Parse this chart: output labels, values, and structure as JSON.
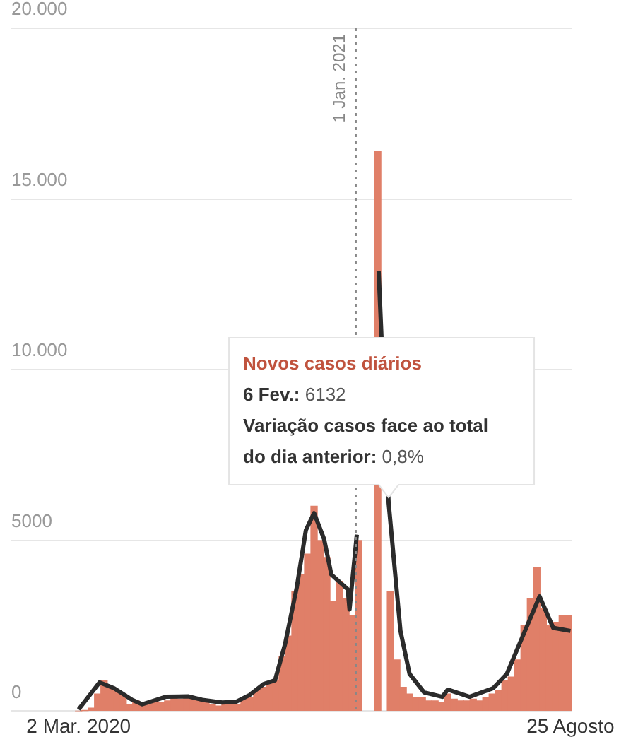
{
  "chart_data": {
    "type": "bar",
    "x": [
      "2020-03-02",
      "2020-03-09",
      "2020-03-16",
      "2020-03-23",
      "2020-03-30",
      "2020-04-06",
      "2020-04-13",
      "2020-04-20",
      "2020-04-27",
      "2020-05-04",
      "2020-05-11",
      "2020-05-18",
      "2020-05-25",
      "2020-06-01",
      "2020-06-08",
      "2020-06-15",
      "2020-06-22",
      "2020-06-29",
      "2020-07-06",
      "2020-07-13",
      "2020-07-20",
      "2020-07-27",
      "2020-08-03",
      "2020-08-10",
      "2020-08-17",
      "2020-08-24",
      "2020-08-31",
      "2020-09-07",
      "2020-09-14",
      "2020-09-21",
      "2020-09-28",
      "2020-10-05",
      "2020-10-12",
      "2020-10-19",
      "2020-10-26",
      "2020-11-02",
      "2020-11-09",
      "2020-11-16",
      "2020-11-23",
      "2020-11-30",
      "2020-12-07",
      "2020-12-14",
      "2020-12-21",
      "2020-12-28",
      "2021-01-04",
      "2021-01-11",
      "2021-01-18",
      "2021-01-25",
      "2021-02-01",
      "2021-02-08",
      "2021-02-15",
      "2021-02-22",
      "2021-03-01",
      "2021-03-08",
      "2021-03-15",
      "2021-03-22",
      "2021-03-29",
      "2021-04-05",
      "2021-04-12",
      "2021-04-19",
      "2021-04-26",
      "2021-05-03",
      "2021-05-10",
      "2021-05-17",
      "2021-05-24",
      "2021-05-31",
      "2021-06-07",
      "2021-06-14",
      "2021-06-21",
      "2021-06-28",
      "2021-07-05",
      "2021-07-12",
      "2021-07-19",
      "2021-07-26",
      "2021-08-02",
      "2021-08-09",
      "2021-08-16",
      "2021-08-23"
    ],
    "series": [
      {
        "color": "#e07f68",
        "values": [
          0,
          10,
          90,
          500,
          900,
          700,
          600,
          500,
          200,
          300,
          200,
          200,
          300,
          250,
          300,
          400,
          350,
          400,
          400,
          350,
          250,
          200,
          150,
          200,
          250,
          200,
          350,
          400,
          600,
          700,
          800,
          900,
          1600,
          2200,
          3500,
          4000,
          4600,
          6000,
          5000,
          4500,
          3200,
          3800,
          3300,
          2800,
          5000,
          null,
          null,
          16400,
          null,
          3500,
          1500,
          700,
          500,
          400,
          400,
          300,
          300,
          250,
          500,
          350,
          300,
          300,
          350,
          300,
          400,
          500,
          600,
          900,
          1000,
          1500,
          2500,
          3300,
          4200,
          3000,
          2500,
          2600,
          2800,
          2800
        ]
      },
      {
        "type": "line",
        "color": "#2b2b2b",
        "x": [
          "2020-03-02",
          "2020-03-25",
          "2020-04-10",
          "2020-04-30",
          "2020-05-11",
          "2020-06-06",
          "2020-07-01",
          "2020-07-16",
          "2020-08-07",
          "2020-08-22",
          "2020-09-06",
          "2020-09-22",
          "2020-10-04",
          "2020-10-15",
          "2020-10-28",
          "2020-11-07",
          "2020-11-16",
          "2020-11-27",
          "2020-12-05",
          "2020-12-23",
          "2020-12-25",
          "2021-01-02",
          "2021-01-13",
          "2021-01-19",
          "2021-01-26",
          "2021-02-06",
          "2021-02-19",
          "2021-03-01",
          "2021-03-17",
          "2021-04-06",
          "2021-04-12",
          "2021-05-06",
          "2021-06-01",
          "2021-06-16",
          "2021-07-02",
          "2021-07-22",
          "2021-08-06",
          "2021-08-25"
        ],
        "values": [
          50,
          840,
          670,
          330,
          200,
          420,
          430,
          330,
          250,
          270,
          470,
          800,
          900,
          1950,
          3630,
          5300,
          5800,
          5040,
          4000,
          3570,
          2980,
          5170,
          null,
          null,
          12900,
          6100,
          2350,
          1090,
          550,
          420,
          630,
          420,
          670,
          1090,
          2100,
          3360,
          2440,
          2350
        ]
      }
    ],
    "xlim": [
      "2019-12-19",
      "2021-08-27"
    ],
    "xticks": [
      {
        "value": "2020-03-02",
        "label": "2 Mar. 2020"
      },
      {
        "value": "2021-08-25",
        "label": "25 Agosto"
      }
    ],
    "ylim": [
      0,
      20000
    ],
    "yticks": [
      {
        "value": 0,
        "label": "0"
      },
      {
        "value": 5000,
        "label": "5000"
      },
      {
        "value": 10000,
        "label": "10.000"
      },
      {
        "value": 15000,
        "label": "15.000"
      },
      {
        "value": 20000,
        "label": "20.000"
      }
    ],
    "grid": "y",
    "legend": false,
    "ref_lines": [
      {
        "axis": "x",
        "value": "2021-01-01",
        "label": "1 Jan. 2021",
        "color": "#888888",
        "line_style": "dotted"
      }
    ],
    "annotations": [
      {
        "text": "Novos casos diários\n6 Fev.: 6132\nVariação casos face ao total\ndo dia anterior: 0,8%",
        "x": "2021-02-06",
        "y": 6132
      }
    ]
  }
}
